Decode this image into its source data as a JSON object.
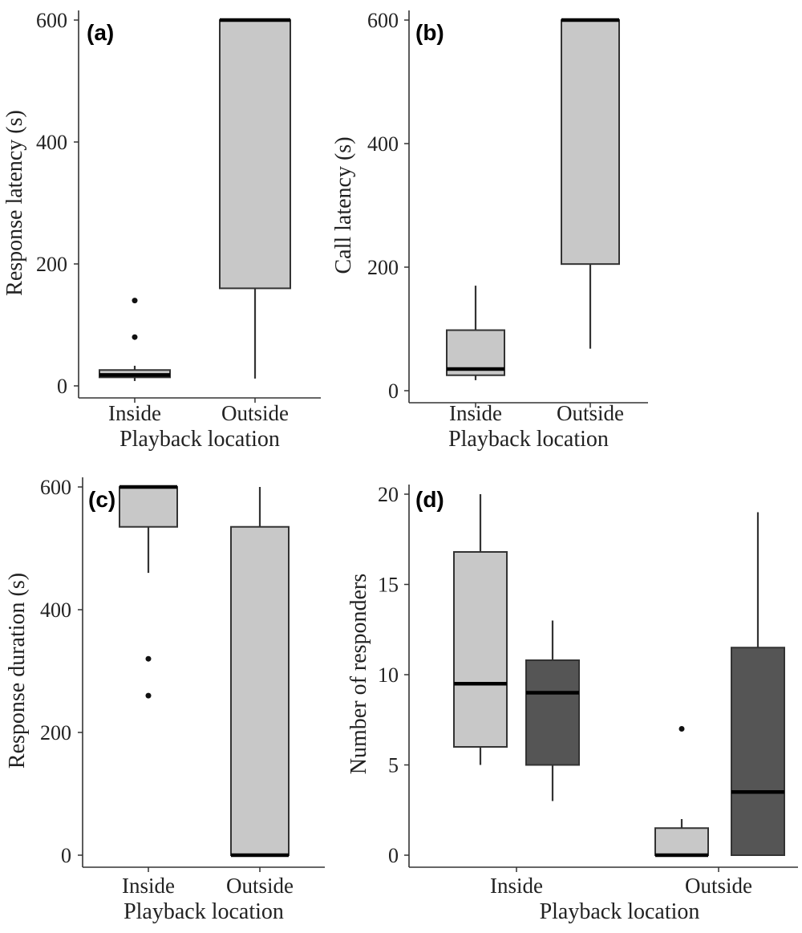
{
  "colors": {
    "light_fill": "#c8c8c8",
    "dark_fill": "#555555",
    "stroke": "#333333",
    "median": "#000000",
    "axis": "#333333"
  },
  "chart_data": [
    {
      "type": "box",
      "panel_label": "(a)",
      "xlabel": "Playback location",
      "ylabel": "Response latency (s)",
      "ylim": [
        0,
        600
      ],
      "yticks": [
        0,
        200,
        400,
        600
      ],
      "categories": [
        "Inside",
        "Outside"
      ],
      "grid": false,
      "boxes": [
        {
          "category": "Inside",
          "fill": "light",
          "min": 8,
          "q1": 14,
          "median": 18,
          "q3": 26,
          "max": 33,
          "outliers": [
            80,
            140
          ]
        },
        {
          "category": "Outside",
          "fill": "light",
          "min": 12,
          "q1": 160,
          "median": 600,
          "q3": 600,
          "max": 600,
          "outliers": []
        }
      ]
    },
    {
      "type": "box",
      "panel_label": "(b)",
      "xlabel": "Playback location",
      "ylabel": "Call latency (s)",
      "ylim": [
        0,
        600
      ],
      "yticks": [
        0,
        200,
        400,
        600
      ],
      "categories": [
        "Inside",
        "Outside"
      ],
      "grid": false,
      "boxes": [
        {
          "category": "Inside",
          "fill": "light",
          "min": 17,
          "q1": 25,
          "median": 35,
          "q3": 98,
          "max": 170,
          "outliers": []
        },
        {
          "category": "Outside",
          "fill": "light",
          "min": 68,
          "q1": 205,
          "median": 600,
          "q3": 600,
          "max": 600,
          "outliers": []
        }
      ]
    },
    {
      "type": "box",
      "panel_label": "(c)",
      "xlabel": "Playback location",
      "ylabel": "Response duration (s)",
      "ylim": [
        0,
        600
      ],
      "yticks": [
        0,
        200,
        400,
        600
      ],
      "categories": [
        "Inside",
        "Outside"
      ],
      "grid": false,
      "boxes": [
        {
          "category": "Inside",
          "fill": "light",
          "min": 460,
          "q1": 535,
          "median": 600,
          "q3": 600,
          "max": 600,
          "outliers": [
            320,
            260
          ]
        },
        {
          "category": "Outside",
          "fill": "light",
          "min": 0,
          "q1": 0,
          "median": 0,
          "q3": 535,
          "max": 600,
          "outliers": []
        }
      ]
    },
    {
      "type": "box",
      "panel_label": "(d)",
      "xlabel": "Playback location",
      "ylabel": "Number of responders",
      "ylim": [
        0,
        20
      ],
      "yticks": [
        0,
        5,
        10,
        15,
        20
      ],
      "categories": [
        "Inside",
        "Outside"
      ],
      "grid": false,
      "boxes": [
        {
          "category": "Inside",
          "fill": "light",
          "min": 5,
          "q1": 6,
          "median": 9.5,
          "q3": 16.8,
          "max": 20,
          "outliers": []
        },
        {
          "category": "Inside",
          "fill": "dark",
          "min": 3,
          "q1": 5,
          "median": 9,
          "q3": 10.8,
          "max": 13,
          "outliers": []
        },
        {
          "category": "Outside",
          "fill": "light",
          "min": 0,
          "q1": 0,
          "median": 0,
          "q3": 1.5,
          "max": 2,
          "outliers": [
            7
          ]
        },
        {
          "category": "Outside",
          "fill": "dark",
          "min": 0,
          "q1": 0,
          "median": 3.5,
          "q3": 11.5,
          "max": 19,
          "outliers": []
        }
      ]
    }
  ]
}
